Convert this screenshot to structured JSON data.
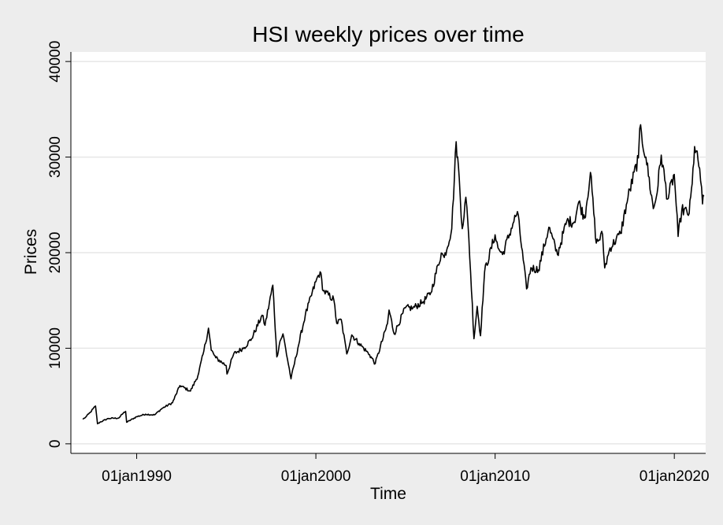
{
  "chart_data": {
    "type": "line",
    "title": "HSI weekly prices over time",
    "xlabel": "Time",
    "ylabel": "Prices",
    "x_is_date": true,
    "xlim": [
      "1986-05-01",
      "2021-10-01"
    ],
    "ylim": [
      -1000,
      41000
    ],
    "yticks": [
      0,
      10000,
      20000,
      30000,
      40000
    ],
    "ytick_labels": [
      "0",
      "10000",
      "20000",
      "30000",
      "40000"
    ],
    "xticks": [
      "1990-01-01",
      "2000-01-01",
      "2010-01-01",
      "2020-01-01"
    ],
    "xtick_labels": [
      "01jan1990",
      "01jan2000",
      "01jan2010",
      "01jan2020"
    ],
    "grid": true,
    "line_color": "#000000",
    "grid_color": "#e6e6e6",
    "series": [
      {
        "points": [
          [
            "1986-12-31",
            2568
          ],
          [
            "1987-03-01",
            2800
          ],
          [
            "1987-06-01",
            3300
          ],
          [
            "1987-09-15",
            3950
          ],
          [
            "1987-10-26",
            2100
          ],
          [
            "1987-12-31",
            2300
          ],
          [
            "1988-06-01",
            2650
          ],
          [
            "1988-12-31",
            2700
          ],
          [
            "1989-04-01",
            3200
          ],
          [
            "1989-05-20",
            3400
          ],
          [
            "1989-06-10",
            2250
          ],
          [
            "1989-12-31",
            2836
          ],
          [
            "1990-07-01",
            3100
          ],
          [
            "1990-12-31",
            3024
          ],
          [
            "1991-06-01",
            3700
          ],
          [
            "1991-12-31",
            4297
          ],
          [
            "1992-06-01",
            6100
          ],
          [
            "1992-12-31",
            5512
          ],
          [
            "1993-06-01",
            7100
          ],
          [
            "1993-10-01",
            9700
          ],
          [
            "1994-01-03",
            12100
          ],
          [
            "1994-03-01",
            9800
          ],
          [
            "1994-06-01",
            9000
          ],
          [
            "1994-12-31",
            8191
          ],
          [
            "1995-01-15",
            7300
          ],
          [
            "1995-06-01",
            9400
          ],
          [
            "1995-12-31",
            10073
          ],
          [
            "1996-06-01",
            11000
          ],
          [
            "1996-12-31",
            13451
          ],
          [
            "1997-03-01",
            12400
          ],
          [
            "1997-08-07",
            16600
          ],
          [
            "1997-10-28",
            9100
          ],
          [
            "1997-12-31",
            10723
          ],
          [
            "1998-03-01",
            11500
          ],
          [
            "1998-08-13",
            6800
          ],
          [
            "1998-12-31",
            10049
          ],
          [
            "1999-06-01",
            13500
          ],
          [
            "1999-12-31",
            16962
          ],
          [
            "2000-03-28",
            18000
          ],
          [
            "2000-06-01",
            16000
          ],
          [
            "2000-12-31",
            15096
          ],
          [
            "2001-03-01",
            12600
          ],
          [
            "2001-06-01",
            13000
          ],
          [
            "2001-09-21",
            9400
          ],
          [
            "2001-12-31",
            11397
          ],
          [
            "2002-06-01",
            10500
          ],
          [
            "2002-12-31",
            9321
          ],
          [
            "2003-04-25",
            8400
          ],
          [
            "2003-12-31",
            12576
          ],
          [
            "2004-02-01",
            14000
          ],
          [
            "2004-05-15",
            11500
          ],
          [
            "2004-12-31",
            14230
          ],
          [
            "2005-06-01",
            14200
          ],
          [
            "2005-12-31",
            14876
          ],
          [
            "2006-06-01",
            15800
          ],
          [
            "2006-12-31",
            19965
          ],
          [
            "2007-03-01",
            19500
          ],
          [
            "2007-08-01",
            22500
          ],
          [
            "2007-10-30",
            31600
          ],
          [
            "2007-12-31",
            27813
          ],
          [
            "2008-03-01",
            22500
          ],
          [
            "2008-05-15",
            25800
          ],
          [
            "2008-07-15",
            21500
          ],
          [
            "2008-10-27",
            11000
          ],
          [
            "2008-12-31",
            14387
          ],
          [
            "2009-03-09",
            11300
          ],
          [
            "2009-06-01",
            18000
          ],
          [
            "2009-12-31",
            21872
          ],
          [
            "2010-03-01",
            20500
          ],
          [
            "2010-06-01",
            19800
          ],
          [
            "2010-12-31",
            23035
          ],
          [
            "2011-04-01",
            24300
          ],
          [
            "2011-10-04",
            16200
          ],
          [
            "2011-12-31",
            18434
          ],
          [
            "2012-06-01",
            18200
          ],
          [
            "2012-12-31",
            22657
          ],
          [
            "2013-06-24",
            19800
          ],
          [
            "2013-12-31",
            23306
          ],
          [
            "2014-06-01",
            23200
          ],
          [
            "2014-09-01",
            25300
          ],
          [
            "2014-12-31",
            23605
          ],
          [
            "2015-04-27",
            28400
          ],
          [
            "2015-08-24",
            21000
          ],
          [
            "2015-12-31",
            21914
          ],
          [
            "2016-02-12",
            18400
          ],
          [
            "2016-06-01",
            20500
          ],
          [
            "2016-12-31",
            22001
          ],
          [
            "2017-06-01",
            25800
          ],
          [
            "2017-12-31",
            29919
          ],
          [
            "2018-01-26",
            33000
          ],
          [
            "2018-06-01",
            30000
          ],
          [
            "2018-10-30",
            24600
          ],
          [
            "2018-12-31",
            25846
          ],
          [
            "2019-04-10",
            30200
          ],
          [
            "2019-08-15",
            25600
          ],
          [
            "2019-12-31",
            28190
          ],
          [
            "2020-03-19",
            21700
          ],
          [
            "2020-06-01",
            24500
          ],
          [
            "2020-10-30",
            24100
          ],
          [
            "2020-12-31",
            27231
          ],
          [
            "2021-02-17",
            31100
          ],
          [
            "2021-06-01",
            28800
          ],
          [
            "2021-07-28",
            25100
          ],
          [
            "2021-08-25",
            25900
          ]
        ]
      }
    ]
  }
}
